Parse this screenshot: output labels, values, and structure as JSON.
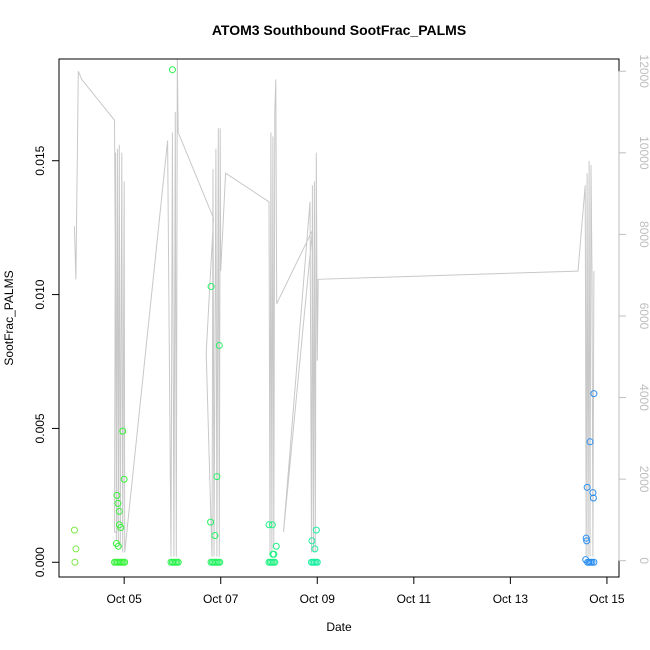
{
  "chart_data": {
    "type": "scatter",
    "title": "ATOM3 Southbound SootFrac_PALMS",
    "xlabel": "Date",
    "ylabel": "SootFrac_PALMS",
    "x_ticks": [
      "Oct 05",
      "Oct 07",
      "Oct 09",
      "Oct 11",
      "Oct 13",
      "Oct 15"
    ],
    "x_tick_values": [
      5,
      7,
      9,
      11,
      13,
      15
    ],
    "xlim": [
      3.65,
      15.25
    ],
    "ylim": [
      -0.00055,
      0.0188
    ],
    "y_ticks": [
      "0.000",
      "0.005",
      "0.010",
      "0.015"
    ],
    "y_tick_values": [
      0,
      0.005,
      0.01,
      0.015
    ],
    "y2_ticks": [
      "0",
      "2000",
      "4000",
      "6000",
      "8000",
      "10000",
      "12000"
    ],
    "y2_tick_values": [
      0,
      2000,
      4000,
      6000,
      8000,
      10000,
      12000
    ],
    "y2lim": [
      -400,
      12300
    ],
    "colors": {
      "axis": "#000000",
      "secondary_axis": "#bebebe",
      "altitude_line": "#c8c8c8"
    },
    "grid": false,
    "legend": "none",
    "points": [
      {
        "x": 3.97,
        "y": 0.0012,
        "color": "#7fe84a"
      },
      {
        "x": 4.0,
        "y": 0.0005,
        "color": "#7fe84a"
      },
      {
        "x": 3.98,
        "y": 0.0,
        "color": "#7fe84a"
      },
      {
        "x": 4.8,
        "y": 0.0,
        "color": "#39f23c"
      },
      {
        "x": 4.83,
        "y": 0.0,
        "color": "#39f23c"
      },
      {
        "x": 4.86,
        "y": 0.0,
        "color": "#39f23c"
      },
      {
        "x": 4.89,
        "y": 0.0,
        "color": "#39f23c"
      },
      {
        "x": 4.92,
        "y": 0.0,
        "color": "#39f23c"
      },
      {
        "x": 4.95,
        "y": 0.0,
        "color": "#39f23c"
      },
      {
        "x": 4.98,
        "y": 0.0,
        "color": "#39f23c"
      },
      {
        "x": 5.01,
        "y": 0.0,
        "color": "#39f23c"
      },
      {
        "x": 4.84,
        "y": 0.0007,
        "color": "#39f23c"
      },
      {
        "x": 4.88,
        "y": 0.0006,
        "color": "#39f23c"
      },
      {
        "x": 4.85,
        "y": 0.0025,
        "color": "#39f23c"
      },
      {
        "x": 4.87,
        "y": 0.0022,
        "color": "#39f23c"
      },
      {
        "x": 4.9,
        "y": 0.0019,
        "color": "#39f23c"
      },
      {
        "x": 4.9,
        "y": 0.0014,
        "color": "#39f23c"
      },
      {
        "x": 4.93,
        "y": 0.0013,
        "color": "#39f23c"
      },
      {
        "x": 4.97,
        "y": 0.0049,
        "color": "#39f23c"
      },
      {
        "x": 5.0,
        "y": 0.0031,
        "color": "#39f23c"
      },
      {
        "x": 6.0,
        "y": 0.0184,
        "color": "#2ef250"
      },
      {
        "x": 5.97,
        "y": 0.0,
        "color": "#2ef250"
      },
      {
        "x": 6.0,
        "y": 0.0,
        "color": "#2ef250"
      },
      {
        "x": 6.03,
        "y": 0.0,
        "color": "#2ef250"
      },
      {
        "x": 6.06,
        "y": 0.0,
        "color": "#2ef250"
      },
      {
        "x": 6.09,
        "y": 0.0,
        "color": "#2ef250"
      },
      {
        "x": 6.12,
        "y": 0.0,
        "color": "#2ef250"
      },
      {
        "x": 6.8,
        "y": 0.0103,
        "color": "#26f264"
      },
      {
        "x": 6.97,
        "y": 0.0081,
        "color": "#26f264"
      },
      {
        "x": 6.92,
        "y": 0.0032,
        "color": "#26f264"
      },
      {
        "x": 6.79,
        "y": 0.0015,
        "color": "#26f264"
      },
      {
        "x": 6.88,
        "y": 0.001,
        "color": "#26f264"
      },
      {
        "x": 6.8,
        "y": 0.0,
        "color": "#26f264"
      },
      {
        "x": 6.83,
        "y": 0.0,
        "color": "#26f264"
      },
      {
        "x": 6.86,
        "y": 0.0,
        "color": "#26f264"
      },
      {
        "x": 6.89,
        "y": 0.0,
        "color": "#26f264"
      },
      {
        "x": 6.92,
        "y": 0.0,
        "color": "#26f264"
      },
      {
        "x": 6.95,
        "y": 0.0,
        "color": "#26f264"
      },
      {
        "x": 6.98,
        "y": 0.0,
        "color": "#26f264"
      },
      {
        "x": 8.0,
        "y": 0.0014,
        "color": "#1ff082"
      },
      {
        "x": 8.07,
        "y": 0.0014,
        "color": "#1ff082"
      },
      {
        "x": 8.15,
        "y": 0.0006,
        "color": "#1ff082"
      },
      {
        "x": 8.08,
        "y": 0.0003,
        "color": "#1ff082"
      },
      {
        "x": 8.1,
        "y": 0.0003,
        "color": "#1ff082"
      },
      {
        "x": 8.0,
        "y": 0.0,
        "color": "#1ff082"
      },
      {
        "x": 8.03,
        "y": 0.0,
        "color": "#1ff082"
      },
      {
        "x": 8.06,
        "y": 0.0,
        "color": "#1ff082"
      },
      {
        "x": 8.09,
        "y": 0.0,
        "color": "#1ff082"
      },
      {
        "x": 8.12,
        "y": 0.0,
        "color": "#1ff082"
      },
      {
        "x": 8.89,
        "y": 0.0008,
        "color": "#1aeea0"
      },
      {
        "x": 8.95,
        "y": 0.0005,
        "color": "#1aeea0"
      },
      {
        "x": 8.98,
        "y": 0.0012,
        "color": "#1aeea0"
      },
      {
        "x": 8.88,
        "y": 0.0,
        "color": "#1aeea0"
      },
      {
        "x": 8.91,
        "y": 0.0,
        "color": "#1aeea0"
      },
      {
        "x": 8.94,
        "y": 0.0,
        "color": "#1aeea0"
      },
      {
        "x": 8.97,
        "y": 0.0,
        "color": "#1aeea0"
      },
      {
        "x": 9.0,
        "y": 0.0,
        "color": "#1aeea0"
      },
      {
        "x": 14.73,
        "y": 0.0063,
        "color": "#2b8ff0"
      },
      {
        "x": 14.65,
        "y": 0.0045,
        "color": "#2b8ff0"
      },
      {
        "x": 14.59,
        "y": 0.0028,
        "color": "#2b8ff0"
      },
      {
        "x": 14.71,
        "y": 0.0026,
        "color": "#2b8ff0"
      },
      {
        "x": 14.72,
        "y": 0.0024,
        "color": "#2b8ff0"
      },
      {
        "x": 14.57,
        "y": 0.0009,
        "color": "#2b8ff0"
      },
      {
        "x": 14.58,
        "y": 0.0008,
        "color": "#2b8ff0"
      },
      {
        "x": 14.56,
        "y": 0.0001,
        "color": "#2b8ff0"
      },
      {
        "x": 14.6,
        "y": 0.0,
        "color": "#2b8ff0"
      },
      {
        "x": 14.63,
        "y": 0.0,
        "color": "#2b8ff0"
      },
      {
        "x": 14.66,
        "y": 0.0,
        "color": "#2b8ff0"
      },
      {
        "x": 14.69,
        "y": 0.0,
        "color": "#2b8ff0"
      },
      {
        "x": 14.73,
        "y": 0.0,
        "color": "#2b8ff0"
      }
    ],
    "altitude_series": [
      [
        3.97,
        8200
      ],
      [
        4.0,
        6900
      ],
      [
        4.05,
        12000
      ],
      [
        4.12,
        11800
      ],
      [
        4.8,
        10800
      ],
      [
        4.85,
        700
      ],
      [
        4.8,
        700
      ],
      [
        4.82,
        10000
      ],
      [
        4.84,
        500
      ],
      [
        4.86,
        10100
      ],
      [
        4.88,
        400
      ],
      [
        4.9,
        10200
      ],
      [
        4.92,
        300
      ],
      [
        4.95,
        10000
      ],
      [
        4.97,
        200
      ],
      [
        5.0,
        9300
      ],
      [
        5.01,
        200
      ],
      [
        5.9,
        10300
      ],
      [
        5.97,
        100
      ],
      [
        6.0,
        10500
      ],
      [
        6.03,
        100
      ],
      [
        6.06,
        11000
      ],
      [
        6.08,
        100
      ],
      [
        6.1,
        12300
      ],
      [
        6.12,
        10500
      ],
      [
        6.85,
        8400
      ],
      [
        6.7,
        5100
      ],
      [
        6.82,
        100
      ],
      [
        6.84,
        9600
      ],
      [
        6.86,
        100
      ],
      [
        6.9,
        10100
      ],
      [
        6.92,
        100
      ],
      [
        6.95,
        10600
      ],
      [
        6.97,
        100
      ],
      [
        6.99,
        10600
      ],
      [
        7.0,
        7100
      ],
      [
        7.1,
        9500
      ],
      [
        8.0,
        8800
      ],
      [
        8.02,
        200
      ],
      [
        8.04,
        10500
      ],
      [
        8.06,
        200
      ],
      [
        8.08,
        10400
      ],
      [
        8.1,
        300
      ],
      [
        8.12,
        11000
      ],
      [
        8.14,
        11800
      ],
      [
        8.16,
        6300
      ],
      [
        8.9,
        8100
      ],
      [
        8.3,
        700
      ],
      [
        8.85,
        8800
      ],
      [
        8.88,
        200
      ],
      [
        8.9,
        9200
      ],
      [
        8.92,
        200
      ],
      [
        8.94,
        9300
      ],
      [
        8.96,
        200
      ],
      [
        8.98,
        10000
      ],
      [
        9.0,
        4900
      ],
      [
        9.02,
        6900
      ],
      [
        14.4,
        7100
      ],
      [
        14.55,
        9200
      ],
      [
        14.57,
        100
      ],
      [
        14.59,
        9500
      ],
      [
        14.61,
        100
      ],
      [
        14.63,
        9800
      ],
      [
        14.65,
        100
      ],
      [
        14.67,
        9700
      ],
      [
        14.69,
        7000
      ],
      [
        14.71,
        100
      ],
      [
        14.73,
        7100
      ]
    ]
  }
}
